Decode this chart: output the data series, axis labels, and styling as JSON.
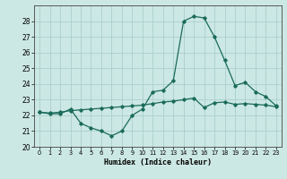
{
  "title": "",
  "xlabel": "Humidex (Indice chaleur)",
  "ylabel": "",
  "background_color": "#cce8e4",
  "grid_color": "#aad0cc",
  "line_color": "#1a6b5a",
  "xlim": [
    -0.5,
    23.5
  ],
  "ylim": [
    20,
    29
  ],
  "yticks": [
    20,
    21,
    22,
    23,
    24,
    25,
    26,
    27,
    28
  ],
  "xticks": [
    0,
    1,
    2,
    3,
    4,
    5,
    6,
    7,
    8,
    9,
    10,
    11,
    12,
    13,
    14,
    15,
    16,
    17,
    18,
    19,
    20,
    21,
    22,
    23
  ],
  "line1_x": [
    0,
    1,
    2,
    3,
    4,
    5,
    6,
    7,
    8,
    9,
    10,
    11,
    12,
    13,
    14,
    15,
    16,
    17,
    18,
    19,
    20,
    21,
    22,
    23
  ],
  "line1_y": [
    22.2,
    22.1,
    22.1,
    22.4,
    21.5,
    21.2,
    21.0,
    20.7,
    21.0,
    22.0,
    22.4,
    23.5,
    23.6,
    24.2,
    28.0,
    28.3,
    28.2,
    27.0,
    25.5,
    23.9,
    24.1,
    23.5,
    23.2,
    22.6
  ],
  "line2_x": [
    0,
    1,
    2,
    3,
    4,
    5,
    6,
    7,
    8,
    9,
    10,
    11,
    12,
    13,
    14,
    15,
    16,
    17,
    18,
    19,
    20,
    21,
    22,
    23
  ],
  "line2_y": [
    22.2,
    22.15,
    22.2,
    22.3,
    22.35,
    22.4,
    22.45,
    22.5,
    22.55,
    22.6,
    22.65,
    22.75,
    22.85,
    22.9,
    23.0,
    23.1,
    22.5,
    22.8,
    22.85,
    22.7,
    22.75,
    22.7,
    22.65,
    22.55
  ]
}
